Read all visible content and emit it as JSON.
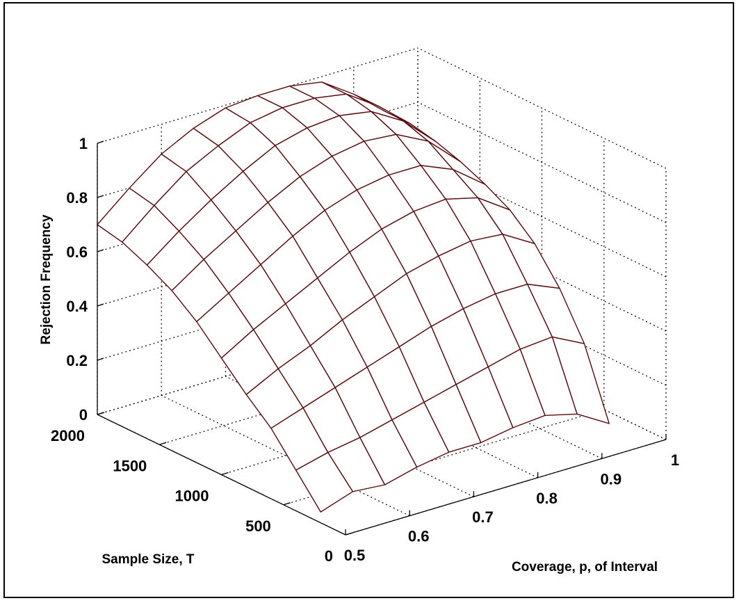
{
  "chart_data": {
    "type": "surface",
    "title": "",
    "xlabel": "Coverage, p, of Interval",
    "ylabel": "Sample Size, T",
    "zlabel": "Rejection Frequency",
    "x_ticks": [
      "0.5",
      "0.6",
      "0.7",
      "0.8",
      "0.9",
      "1"
    ],
    "y_ticks": [
      "0",
      "500",
      "1000",
      "1500",
      "2000"
    ],
    "z_ticks": [
      "0",
      "0.2",
      "0.4",
      "0.6",
      "0.8",
      "1"
    ],
    "xlim": [
      0.5,
      1.0
    ],
    "ylim": [
      0,
      2000
    ],
    "zlim": [
      0,
      1
    ],
    "grid": true,
    "p": [
      0.5,
      0.55,
      0.6,
      0.65,
      0.7,
      0.75,
      0.8,
      0.85,
      0.9,
      0.95
    ],
    "T": [
      200,
      400,
      600,
      800,
      1000,
      1200,
      1400,
      1600,
      1800,
      2000
    ],
    "z": [
      [
        0.04,
        0.08,
        0.07,
        0.1,
        0.12,
        0.12,
        0.14,
        0.15,
        0.12,
        0.05
      ],
      [
        0.15,
        0.18,
        0.2,
        0.23,
        0.26,
        0.29,
        0.32,
        0.35,
        0.36,
        0.3
      ],
      [
        0.26,
        0.3,
        0.34,
        0.38,
        0.42,
        0.46,
        0.49,
        0.51,
        0.51,
        0.46
      ],
      [
        0.34,
        0.4,
        0.45,
        0.51,
        0.56,
        0.61,
        0.64,
        0.66,
        0.65,
        0.58
      ],
      [
        0.43,
        0.5,
        0.56,
        0.62,
        0.68,
        0.73,
        0.76,
        0.77,
        0.74,
        0.66
      ],
      [
        0.52,
        0.59,
        0.66,
        0.73,
        0.79,
        0.83,
        0.85,
        0.85,
        0.8,
        0.71
      ],
      [
        0.59,
        0.67,
        0.74,
        0.81,
        0.87,
        0.91,
        0.93,
        0.92,
        0.86,
        0.75
      ],
      [
        0.64,
        0.73,
        0.81,
        0.88,
        0.94,
        0.97,
        0.98,
        0.96,
        0.89,
        0.78
      ],
      [
        0.68,
        0.78,
        0.87,
        0.93,
        0.98,
        1.0,
        1.0,
        0.98,
        0.9,
        0.8
      ],
      [
        0.7,
        0.8,
        0.89,
        0.95,
        0.99,
        1.0,
        1.0,
        0.98,
        0.9,
        0.8
      ]
    ],
    "mesh_color": "#5a0a0a"
  }
}
